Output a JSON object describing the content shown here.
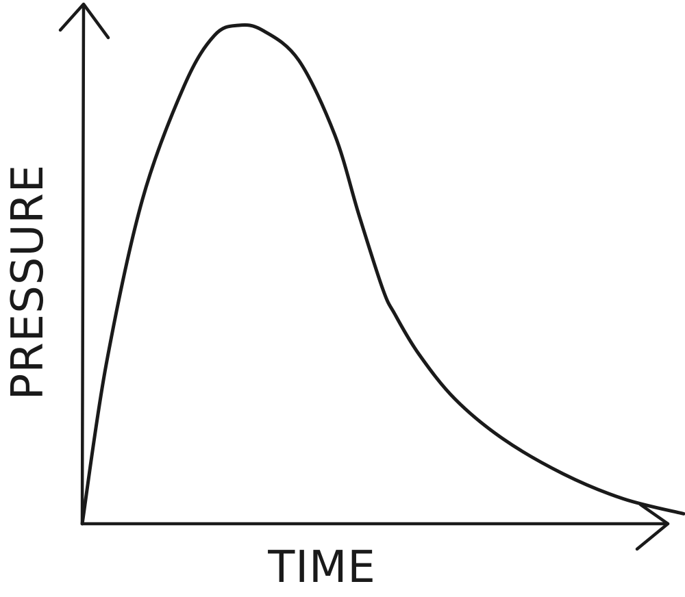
{
  "chart_data": {
    "type": "line",
    "title": "",
    "xlabel": "TIME",
    "ylabel": "PRESSURE",
    "grid": false,
    "legend": "none",
    "series": [
      {
        "x": [
          0,
          0.04,
          0.1,
          0.17,
          0.22,
          0.26,
          0.3,
          0.36,
          0.42,
          0.46,
          0.5,
          0.52,
          0.56,
          0.62,
          0.7,
          0.8,
          0.9,
          1.0
        ],
        "values": [
          0,
          0.32,
          0.65,
          0.88,
          0.98,
          1.0,
          0.99,
          0.93,
          0.78,
          0.62,
          0.47,
          0.42,
          0.34,
          0.25,
          0.17,
          0.1,
          0.05,
          0.02
        ]
      }
    ],
    "colors": {
      "ink": "#1a1a1a",
      "background": "#ffffff"
    }
  }
}
